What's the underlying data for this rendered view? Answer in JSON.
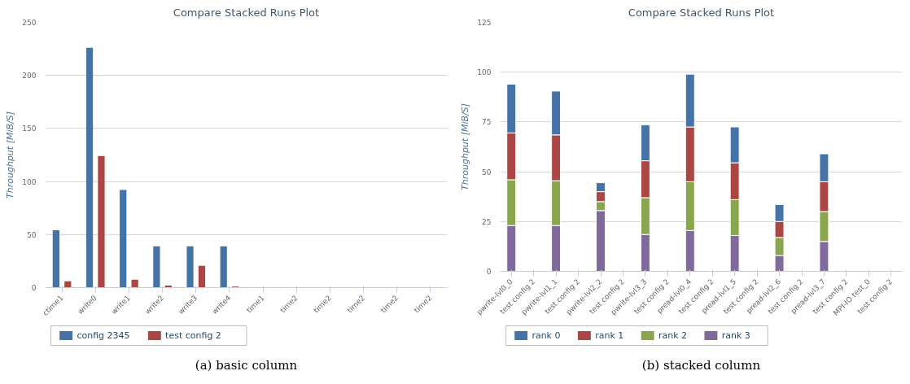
{
  "chart_data": [
    {
      "type": "bar",
      "title": "Compare Stacked Runs Plot",
      "ylabel": "Throughput [MiB/S]",
      "categories": [
        "ctime1",
        "write0",
        "write1",
        "write2",
        "write3",
        "write4",
        "time1",
        "time2",
        "time2",
        "time2",
        "time2",
        "time2"
      ],
      "series": [
        {
          "name": "config 2345",
          "color": "#4572a7",
          "values": [
            54,
            226,
            92,
            39,
            39,
            39,
            null,
            null,
            null,
            null,
            null,
            null
          ]
        },
        {
          "name": "test config 2",
          "color": "#aa4643",
          "values": [
            6,
            124,
            7.5,
            2,
            20.5,
            1,
            null,
            null,
            null,
            null,
            null,
            null
          ]
        }
      ],
      "ylim": [
        0,
        250
      ],
      "yticks": [
        0,
        50,
        100,
        150,
        200,
        250
      ],
      "grid": "y",
      "legend": "bottom",
      "annotations": [
        "(a) basic column"
      ]
    },
    {
      "type": "bar",
      "title": "Compare Stacked Runs Plot",
      "ylabel": "Throughput [MiB/S]",
      "stacked": true,
      "categories": [
        "pwrite-lvl0_0",
        "test config 2",
        "pwrite-lvl1_1",
        "test config 2",
        "pwrite-lvl2_2",
        "test config 2",
        "pwrite-lvl3_3",
        "test config 2",
        "pread-lvl0_4",
        "test config 2",
        "pread-lvl1_5",
        "test config 2",
        "pread-lvl2_6",
        "test config 2",
        "pread-lvl3_7",
        "test config 2",
        "MPI-IO test_0",
        "test config 2"
      ],
      "series": [
        {
          "name": "rank 3",
          "color": "#80699b",
          "values": [
            23,
            null,
            23,
            null,
            30.5,
            null,
            18.5,
            null,
            20.5,
            null,
            18,
            null,
            8,
            null,
            15,
            null,
            null,
            null
          ]
        },
        {
          "name": "rank 2",
          "color": "#89a54e",
          "values": [
            23,
            null,
            22.5,
            null,
            4.5,
            null,
            18.5,
            null,
            24.5,
            null,
            18,
            null,
            9,
            null,
            15,
            null,
            null,
            null
          ]
        },
        {
          "name": "rank 1",
          "color": "#aa4643",
          "values": [
            23.5,
            null,
            23,
            null,
            5,
            null,
            18.5,
            null,
            27.5,
            null,
            18.5,
            null,
            8,
            null,
            15,
            null,
            null,
            null
          ]
        },
        {
          "name": "rank 0",
          "color": "#4572a7",
          "values": [
            24.5,
            null,
            22,
            null,
            4.5,
            null,
            18,
            null,
            26.5,
            null,
            18,
            null,
            8.5,
            null,
            14,
            null,
            null,
            null
          ]
        }
      ],
      "ylim": [
        0,
        125
      ],
      "yticks": [
        0,
        25,
        50,
        75,
        100,
        125
      ],
      "grid": "y",
      "legend": "bottom",
      "annotations": [
        "(b) stacked column"
      ]
    }
  ]
}
